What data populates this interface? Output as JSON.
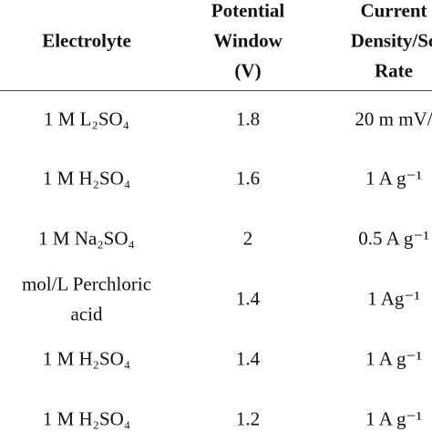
{
  "table": {
    "header": [
      [
        "Electrolyte"
      ],
      [
        "Potential",
        "Window",
        "(V)"
      ],
      [
        "Current",
        "Density/Sc",
        "Rate"
      ]
    ],
    "rows": [
      [
        [
          "1 M L₂SO₄"
        ],
        [
          "1.8"
        ],
        [
          "20 m mV/"
        ]
      ],
      [
        [
          "1 M H₂SO₄"
        ],
        [
          "1.6"
        ],
        [
          "1 A g⁻¹"
        ]
      ],
      [
        [
          "1 M Na₂SO₄"
        ],
        [
          "2"
        ],
        [
          "0.5 A g⁻¹"
        ]
      ],
      [
        [
          "mol/L Perchloric",
          "acid"
        ],
        [
          "1.4"
        ],
        [
          "1 Ag⁻¹"
        ]
      ],
      [
        [
          "1 M H₂SO₄"
        ],
        [
          "1.4"
        ],
        [
          "1 A g⁻¹"
        ]
      ],
      [
        [
          "1 M H₂SO₄"
        ],
        [
          "1.2"
        ],
        [
          "1 A g⁻¹"
        ]
      ]
    ]
  }
}
